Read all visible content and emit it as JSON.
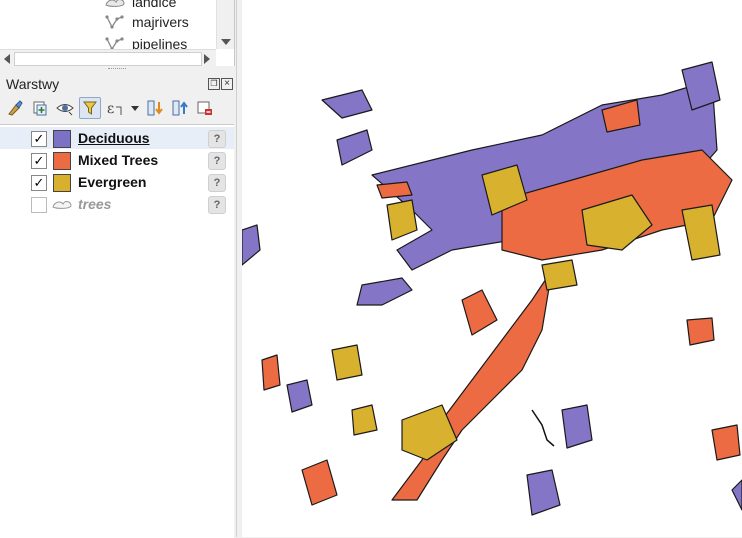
{
  "browser": {
    "items": [
      {
        "label": "landice",
        "icon": "polygon-layer-icon"
      },
      {
        "label": "majrivers",
        "icon": "line-layer-icon"
      },
      {
        "label": "pipelines",
        "icon": "line-layer-icon"
      }
    ]
  },
  "layers_panel": {
    "title": "Warstwy",
    "float_icon": "float-panel-icon",
    "close_icon": "close-panel-icon",
    "toolbar": [
      {
        "name": "style-manager-icon"
      },
      {
        "name": "add-group-icon"
      },
      {
        "name": "manage-visibility-icon"
      },
      {
        "name": "filter-legend-icon"
      },
      {
        "name": "filter-expression-icon"
      },
      {
        "name": "dropdown-arrow-icon"
      },
      {
        "name": "expand-all-icon"
      },
      {
        "name": "collapse-all-icon"
      },
      {
        "name": "remove-layer-icon"
      }
    ],
    "layers": [
      {
        "name": "Deciduous",
        "checked": true,
        "color": "#7b72c6",
        "bold": true,
        "underline": true
      },
      {
        "name": "Mixed Trees",
        "checked": true,
        "color": "#ec6b43",
        "bold": true
      },
      {
        "name": "Evergreen",
        "checked": true,
        "color": "#d9b02d",
        "bold": true
      },
      {
        "name": "trees",
        "checked": false,
        "icon": "polygon-layer-icon",
        "disabled": true
      }
    ],
    "check_mark": "✓",
    "help_mark": "?"
  },
  "map": {
    "colors": {
      "deciduous": "#8575c7",
      "mixed": "#ec6b43",
      "evergreen": "#d8b12f",
      "outline": "#1a1a1a"
    }
  }
}
